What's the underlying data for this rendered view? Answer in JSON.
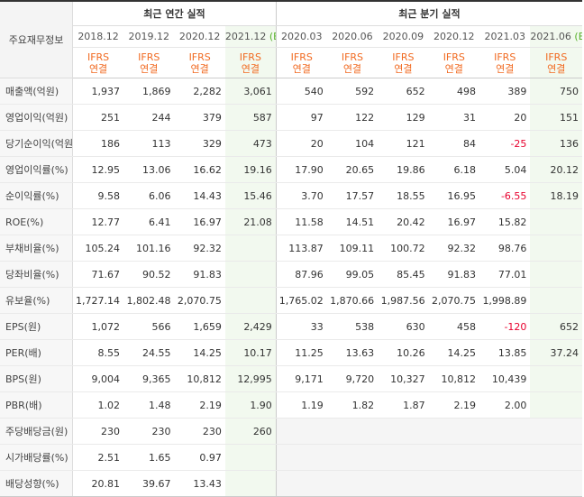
{
  "header": {
    "row_label": "주요재무정보",
    "annual_title": "최근 연간 실적",
    "quarterly_title": "최근 분기 실적"
  },
  "columns": [
    {
      "period": "2018.12",
      "estimate_mark": "",
      "std": "IFRS",
      "basis": "연결"
    },
    {
      "period": "2019.12",
      "estimate_mark": "",
      "std": "IFRS",
      "basis": "연결"
    },
    {
      "period": "2020.12",
      "estimate_mark": "",
      "std": "IFRS",
      "basis": "연결"
    },
    {
      "period": "2021.12",
      "estimate_mark": "(E)",
      "std": "IFRS",
      "basis": "연결"
    },
    {
      "period": "2020.03",
      "estimate_mark": "",
      "std": "IFRS",
      "basis": "연결"
    },
    {
      "period": "2020.06",
      "estimate_mark": "",
      "std": "IFRS",
      "basis": "연결"
    },
    {
      "period": "2020.09",
      "estimate_mark": "",
      "std": "IFRS",
      "basis": "연결"
    },
    {
      "period": "2020.12",
      "estimate_mark": "",
      "std": "IFRS",
      "basis": "연결"
    },
    {
      "period": "2021.03",
      "estimate_mark": "",
      "std": "IFRS",
      "basis": "연결"
    },
    {
      "period": "2021.06",
      "estimate_mark": "(E)",
      "std": "IFRS",
      "basis": "연결"
    }
  ],
  "rows": [
    {
      "label": "매출액(억원)",
      "values": [
        "1,937",
        "1,869",
        "2,282",
        "3,061",
        "540",
        "592",
        "652",
        "498",
        "389",
        "750"
      ]
    },
    {
      "label": "영업이익(억원)",
      "values": [
        "251",
        "244",
        "379",
        "587",
        "97",
        "122",
        "129",
        "31",
        "20",
        "151"
      ]
    },
    {
      "label": "당기순이익(억원)",
      "values": [
        "186",
        "113",
        "329",
        "473",
        "20",
        "104",
        "121",
        "84",
        "-25",
        "136"
      ]
    },
    {
      "label": "영업이익률(%)",
      "values": [
        "12.95",
        "13.06",
        "16.62",
        "19.16",
        "17.90",
        "20.65",
        "19.86",
        "6.18",
        "5.04",
        "20.12"
      ]
    },
    {
      "label": "순이익률(%)",
      "values": [
        "9.58",
        "6.06",
        "14.43",
        "15.46",
        "3.70",
        "17.57",
        "18.55",
        "16.95",
        "-6.55",
        "18.19"
      ]
    },
    {
      "label": "ROE(%)",
      "values": [
        "12.77",
        "6.41",
        "16.97",
        "21.08",
        "11.58",
        "14.51",
        "20.42",
        "16.97",
        "15.82",
        ""
      ]
    },
    {
      "label": "부채비율(%)",
      "values": [
        "105.24",
        "101.16",
        "92.32",
        "",
        "113.87",
        "109.11",
        "100.72",
        "92.32",
        "98.76",
        ""
      ]
    },
    {
      "label": "당좌비율(%)",
      "values": [
        "71.67",
        "90.52",
        "91.83",
        "",
        "87.96",
        "99.05",
        "85.45",
        "91.83",
        "77.01",
        ""
      ]
    },
    {
      "label": "유보율(%)",
      "values": [
        "1,727.14",
        "1,802.48",
        "2,070.75",
        "",
        "1,765.02",
        "1,870.66",
        "1,987.56",
        "2,070.75",
        "1,998.89",
        ""
      ]
    },
    {
      "label": "EPS(원)",
      "values": [
        "1,072",
        "566",
        "1,659",
        "2,429",
        "33",
        "538",
        "630",
        "458",
        "-120",
        "652"
      ]
    },
    {
      "label": "PER(배)",
      "values": [
        "8.55",
        "24.55",
        "14.25",
        "10.17",
        "11.25",
        "13.63",
        "10.26",
        "14.25",
        "13.85",
        "37.24"
      ]
    },
    {
      "label": "BPS(원)",
      "values": [
        "9,004",
        "9,365",
        "10,812",
        "12,995",
        "9,171",
        "9,720",
        "10,327",
        "10,812",
        "10,439",
        ""
      ]
    },
    {
      "label": "PBR(배)",
      "values": [
        "1.02",
        "1.48",
        "2.19",
        "1.90",
        "1.19",
        "1.82",
        "1.87",
        "2.19",
        "2.00",
        ""
      ]
    },
    {
      "label": "주당배당금(원)",
      "values": [
        "230",
        "230",
        "230",
        "260",
        "",
        "",
        "",
        "",
        "",
        ""
      ]
    },
    {
      "label": "시가배당률(%)",
      "values": [
        "2.51",
        "1.65",
        "0.97",
        "",
        "",
        "",
        "",
        "",
        "",
        ""
      ]
    },
    {
      "label": "배당성향(%)",
      "values": [
        "20.81",
        "39.67",
        "13.43",
        "",
        "",
        "",
        "",
        "",
        "",
        ""
      ]
    }
  ]
}
